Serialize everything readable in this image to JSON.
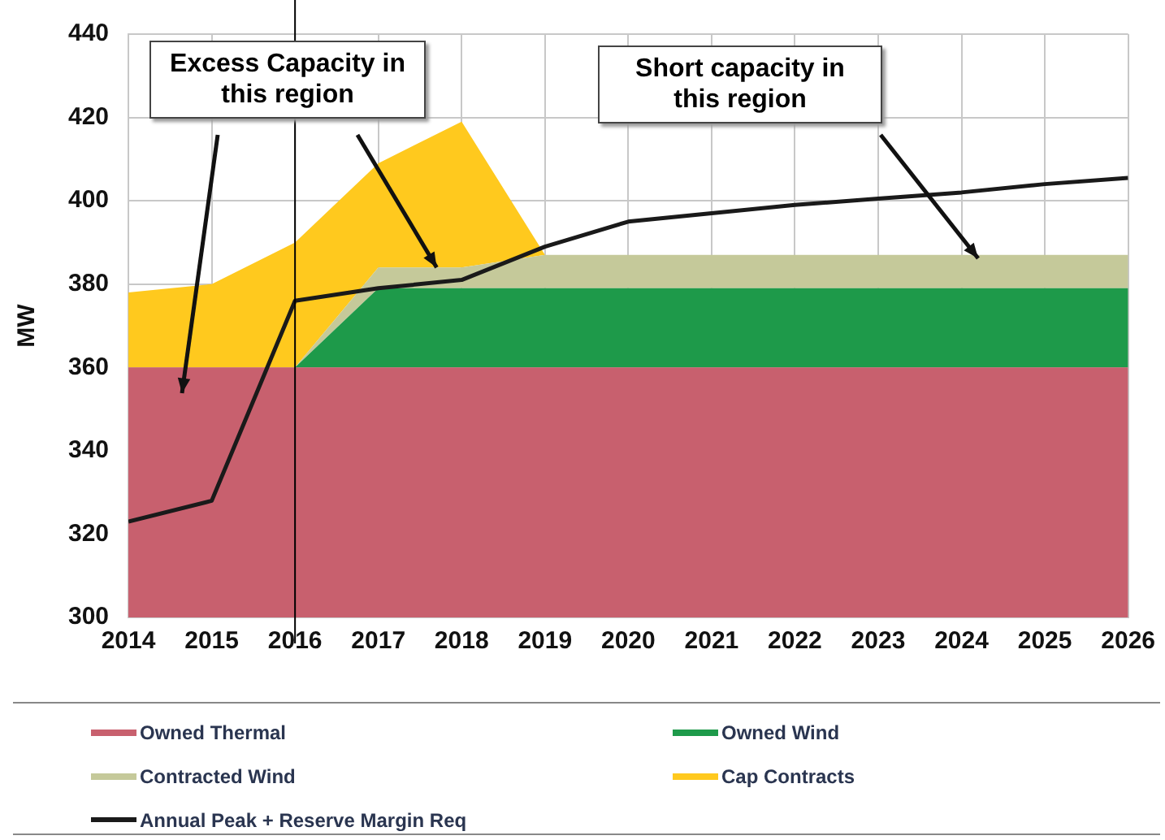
{
  "chart_data": {
    "type": "area",
    "ylabel": "MW",
    "grid": true,
    "legend": "bottom",
    "marker": "none",
    "x": [
      2014,
      2015,
      2016,
      2017,
      2018,
      2019,
      2020,
      2021,
      2022,
      2023,
      2024,
      2025,
      2026
    ],
    "xlim": [
      2014,
      2026
    ],
    "xticks": [
      2014,
      2015,
      2016,
      2017,
      2018,
      2019,
      2020,
      2021,
      2022,
      2023,
      2024,
      2025,
      2026
    ],
    "ylim": [
      300,
      440
    ],
    "yticks": [
      300,
      320,
      340,
      360,
      380,
      400,
      420,
      440
    ],
    "series": [
      {
        "name": "Owned Thermal",
        "color": "#c8606e",
        "values": [
          360,
          360,
          360,
          360,
          360,
          360,
          360,
          360,
          360,
          360,
          360,
          360,
          360
        ]
      },
      {
        "name": "Owned Wind",
        "color": "#1e9a4a",
        "values": [
          360,
          360,
          360,
          379,
          379,
          379,
          379,
          379,
          379,
          379,
          379,
          379,
          379
        ]
      },
      {
        "name": "Contracted Wind",
        "color": "#c5c99a",
        "values": [
          360,
          360,
          360,
          384,
          384,
          387,
          387,
          387,
          387,
          387,
          387,
          387,
          387
        ]
      },
      {
        "name": "Cap Contracts",
        "color": "#ffc91e",
        "values": [
          378,
          380,
          390,
          409,
          419,
          387,
          387,
          387,
          387,
          387,
          387,
          387,
          387
        ]
      },
      {
        "name": "Annual Peak  + Reserve Margin Req",
        "type": "line",
        "color": "#1a1a1a",
        "values": [
          323,
          328,
          376,
          379,
          381,
          389,
          395,
          397,
          399,
          400.5,
          402,
          404,
          405.5
        ]
      }
    ],
    "ref_lines": [
      {
        "axis": "x",
        "value": 2016,
        "color": "#000000"
      }
    ],
    "annotations": [
      {
        "text": "Excess Capacity in this region",
        "x": 2017.7,
        "y": 384
      },
      "Short capacity in this region"
    ]
  }
}
